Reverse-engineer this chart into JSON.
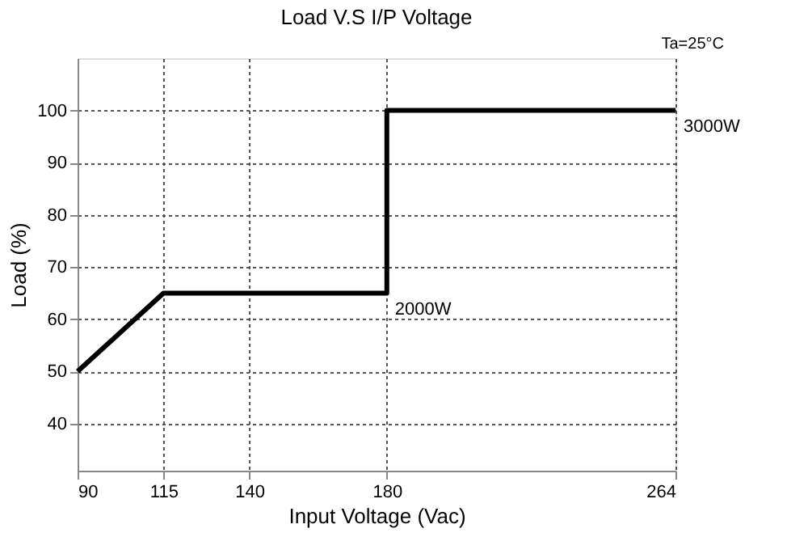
{
  "chart_data": {
    "type": "line",
    "title": "Load V.S I/P Voltage",
    "xlabel": "Input Voltage (Vac)",
    "ylabel": "Load (%)",
    "x": [
      90,
      115,
      180,
      180,
      264
    ],
    "series": [
      {
        "color": "#000000",
        "values": [
          50,
          65,
          65,
          100,
          100
        ]
      }
    ],
    "xlim": [
      90,
      264
    ],
    "xticks": [
      90,
      115,
      140,
      180,
      264
    ],
    "ylim": [
      31,
      110
    ],
    "yticks": [
      40,
      50,
      60,
      70,
      80,
      90,
      100
    ],
    "grid": true,
    "line_style": "solid",
    "marker": "none",
    "annotations": [
      "Ta=25°C",
      {
        "text": "2000W",
        "x": 180,
        "y": 65
      },
      {
        "text": "3000W",
        "x": 264,
        "y": 100
      }
    ]
  }
}
